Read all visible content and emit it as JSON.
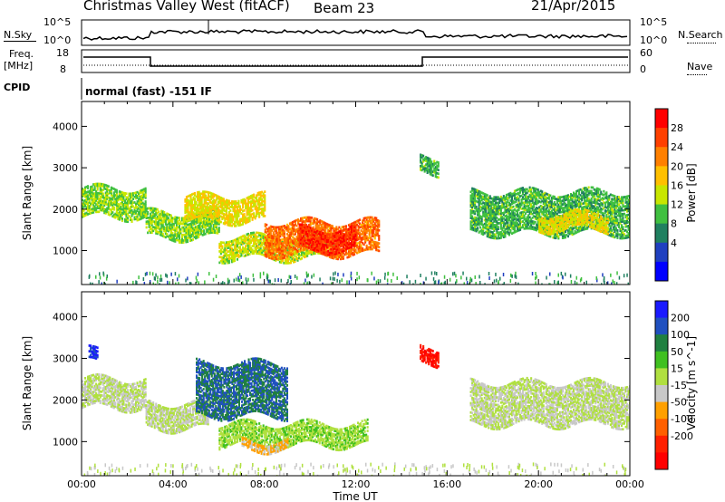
{
  "header": {
    "radar": "Christmas Valley West (fitACF)",
    "beam": "Beam 23",
    "date": "21/Apr/2015"
  },
  "left_labels": {
    "nsky": "N.Sky",
    "freq": "Freq.",
    "freq_unit": "[MHz]",
    "cpid": "CPID"
  },
  "right_labels": {
    "nsearch": "N.Search",
    "nave": "Nave"
  },
  "top_panels": {
    "noise_ticks": [
      "10^5",
      "10^0"
    ],
    "noise_right_ticks": [
      "10^5",
      "10^0"
    ],
    "freq_ticks": [
      "18",
      "8"
    ],
    "nave_ticks": [
      "60",
      "0"
    ],
    "cpid_text": "normal (fast) -151 IF"
  },
  "axes": {
    "ylabel_power": "Slant Range [km]",
    "ylabel_velocity": "Slant Range [km]",
    "xlabel": "Time UT",
    "yticks": [
      "1000",
      "2000",
      "3000",
      "4000"
    ],
    "xticks": [
      "00:00",
      "04:00",
      "08:00",
      "12:00",
      "16:00",
      "20:00",
      "00:00"
    ]
  },
  "colorbars": {
    "power": {
      "title": "Power [dB]",
      "ticks": [
        "28",
        "24",
        "20",
        "16",
        "12",
        "8",
        "4"
      ],
      "colors": [
        "#ff0000",
        "#ff4000",
        "#ff8000",
        "#ffc000",
        "#c8e600",
        "#40c040",
        "#208060",
        "#2040c0",
        "#0000ff"
      ]
    },
    "velocity": {
      "title": "Velocity [m s^-1]",
      "ticks": [
        "200",
        "100",
        "50",
        "15",
        "-15",
        "-50",
        "-100",
        "-200"
      ],
      "colors": [
        "#1a1aff",
        "#2050c0",
        "#208040",
        "#40c020",
        "#b0e040",
        "#c8c8c8",
        "#ffa000",
        "#ff6000",
        "#ff2000",
        "#ff0000"
      ]
    }
  },
  "chart_data": [
    {
      "type": "heatmap",
      "title": "Power [dB]",
      "xlabel": "Time UT",
      "ylabel": "Slant Range [km]",
      "xlim": [
        0,
        24
      ],
      "ylim": [
        180,
        4600
      ],
      "bands": [
        {
          "t0": 0.0,
          "t1": 2.8,
          "r0": 1800,
          "r1": 2500,
          "value": 14
        },
        {
          "t0": 2.8,
          "t1": 6.0,
          "r0": 1300,
          "r1": 1900,
          "value": 14
        },
        {
          "t0": 4.5,
          "t1": 8.0,
          "r0": 1700,
          "r1": 2300,
          "value": 18
        },
        {
          "t0": 6.0,
          "t1": 11.0,
          "r0": 800,
          "r1": 1300,
          "value": 16
        },
        {
          "t0": 8.0,
          "t1": 13.0,
          "r0": 900,
          "r1": 1700,
          "value": 24
        },
        {
          "t0": 9.5,
          "t1": 12.0,
          "r0": 1000,
          "r1": 1500,
          "value": 28
        },
        {
          "t0": 14.8,
          "t1": 15.6,
          "r0": 2850,
          "r1": 3250,
          "value": 12
        },
        {
          "t0": 17.0,
          "t1": 24.0,
          "r0": 1400,
          "r1": 2400,
          "value": 12
        },
        {
          "t0": 20.0,
          "t1": 23.0,
          "r0": 1500,
          "r1": 1900,
          "value": 18
        }
      ]
    },
    {
      "type": "heatmap",
      "title": "Velocity [m s^-1]",
      "xlabel": "Time UT",
      "ylabel": "Slant Range [km]",
      "xlim": [
        0,
        24
      ],
      "ylim": [
        180,
        4600
      ],
      "bands": [
        {
          "t0": 0.0,
          "t1": 2.8,
          "r0": 1800,
          "r1": 2500,
          "value": 0
        },
        {
          "t0": 0.3,
          "t1": 0.7,
          "r0": 2900,
          "r1": 3200,
          "value": 200
        },
        {
          "t0": 2.8,
          "t1": 5.5,
          "r0": 1300,
          "r1": 1900,
          "value": 0
        },
        {
          "t0": 5.0,
          "t1": 9.0,
          "r0": 1600,
          "r1": 2900,
          "value": 150
        },
        {
          "t0": 6.0,
          "t1": 12.5,
          "r0": 900,
          "r1": 1400,
          "value": 40
        },
        {
          "t0": 7.0,
          "t1": 9.0,
          "r0": 800,
          "r1": 1000,
          "value": -60
        },
        {
          "t0": 14.8,
          "t1": 15.6,
          "r0": 2850,
          "r1": 3250,
          "value": -200
        },
        {
          "t0": 17.0,
          "t1": 24.0,
          "r0": 1400,
          "r1": 2400,
          "value": 0
        }
      ]
    }
  ]
}
